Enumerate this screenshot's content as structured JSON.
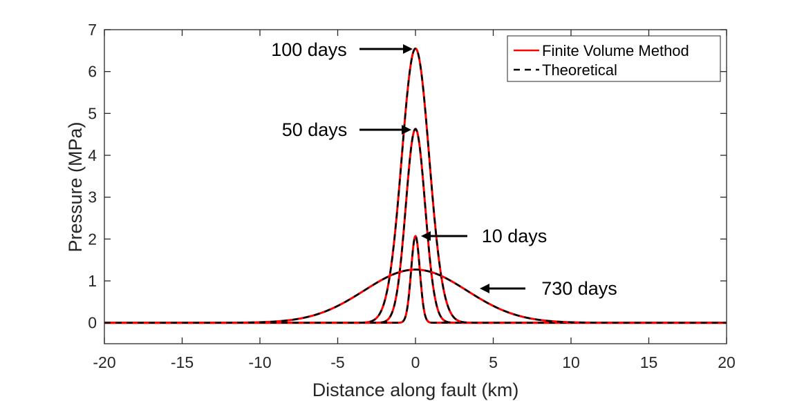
{
  "chart_data": {
    "type": "line",
    "title": "",
    "xlabel": "Distance along fault (km)",
    "ylabel": "Pressure (MPa)",
    "xlim": [
      -20,
      20
    ],
    "ylim": [
      -0.5,
      7
    ],
    "xticks": [
      -20,
      -15,
      -10,
      -5,
      0,
      5,
      10,
      15,
      20
    ],
    "yticks": [
      0,
      1,
      2,
      3,
      4,
      5,
      6,
      7
    ],
    "xtick_labels": [
      "-20",
      "-15",
      "-10",
      "-5",
      "0",
      "5",
      "10",
      "15",
      "20"
    ],
    "ytick_labels": [
      "0",
      "1",
      "2",
      "3",
      "4",
      "5",
      "6",
      "7"
    ],
    "grid": false,
    "legend": {
      "position": "top-right",
      "entries": [
        {
          "label": "Finite Volume Method",
          "style": "solid",
          "color": "#ff0000"
        },
        {
          "label": "Theoretical",
          "style": "dashed",
          "color": "#000000"
        }
      ]
    },
    "series": [
      {
        "name": "10 days",
        "peak": 2.07,
        "decay_length_km": 0.28
      },
      {
        "name": "50 days",
        "peak": 4.63,
        "decay_length_km": 0.62
      },
      {
        "name": "100 days",
        "peak": 6.55,
        "decay_length_km": 0.88
      },
      {
        "name": "730 days",
        "peak": 1.27,
        "spread_km": 3.3
      }
    ],
    "annotations": [
      {
        "text": "100 days",
        "target": [
          0,
          6.55
        ],
        "label_side": "left"
      },
      {
        "text": "50 days",
        "target": [
          0,
          4.63
        ],
        "label_side": "left"
      },
      {
        "text": "10 days",
        "target": [
          0.35,
          2.07
        ],
        "label_side": "right"
      },
      {
        "text": "730 days",
        "target": [
          4.3,
          0.95
        ],
        "label_side": "right"
      }
    ],
    "colors": {
      "fvm": "#ff0000",
      "theory": "#000000",
      "axis": "#262626"
    }
  }
}
